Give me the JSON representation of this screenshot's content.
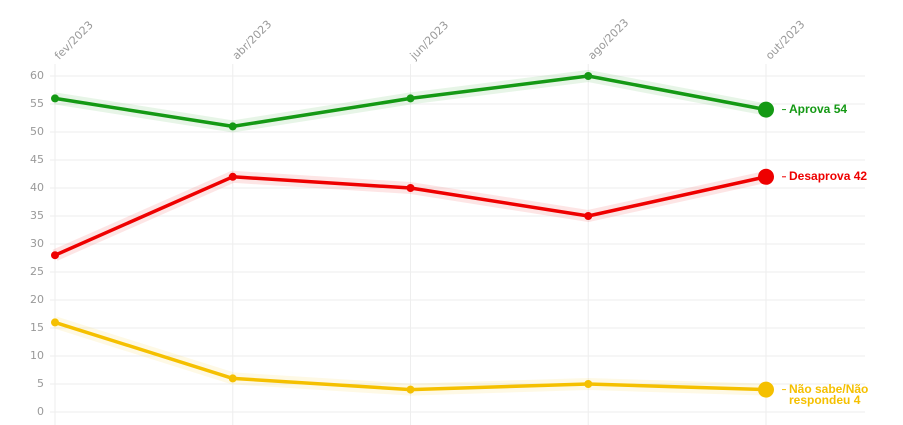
{
  "chart_data": {
    "type": "line",
    "categories": [
      "fev/2023",
      "abr/2023",
      "jun/2023",
      "ago/2023",
      "out/2023"
    ],
    "series": [
      {
        "name": "Aprova",
        "color": "#149914",
        "values": [
          56,
          51,
          56,
          60,
          54
        ]
      },
      {
        "name": "Desaprova",
        "color": "#ee0000",
        "values": [
          28,
          42,
          40,
          35,
          42
        ]
      },
      {
        "name": "Não sabe/Não respondeu",
        "color": "#f5c000",
        "values": [
          16,
          6,
          4,
          5,
          4
        ]
      }
    ],
    "ylim": [
      0,
      60
    ],
    "yticks": [
      0,
      5,
      10,
      15,
      20,
      25,
      30,
      35,
      40,
      45,
      50,
      55,
      60
    ],
    "grid": true
  }
}
